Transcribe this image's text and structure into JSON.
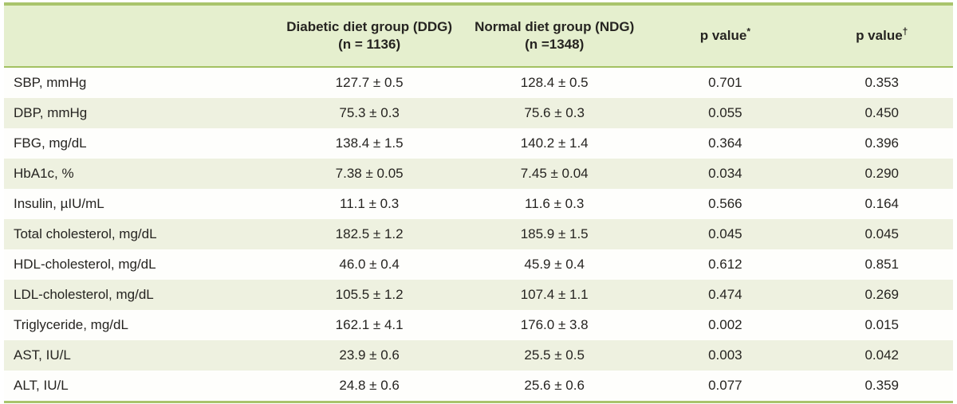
{
  "table": {
    "header": {
      "label_col": "",
      "ddg": {
        "line1": "Diabetic diet group (DDG)",
        "line2": "(n = 1136)"
      },
      "ndg": {
        "line1": "Normal diet group (NDG)",
        "line2": "(n =1348)"
      },
      "p1": {
        "label": "p value",
        "sup": "*"
      },
      "p2": {
        "label": "p value",
        "sup": "†"
      }
    },
    "rows": [
      {
        "label": "SBP, mmHg",
        "ddg": "127.7 ± 0.5",
        "ndg": "128.4 ± 0.5",
        "p1": "0.701",
        "p2": "0.353"
      },
      {
        "label": "DBP, mmHg",
        "ddg": "75.3 ± 0.3",
        "ndg": "75.6 ± 0.3",
        "p1": "0.055",
        "p2": "0.450"
      },
      {
        "label": "FBG, mg/dL",
        "ddg": "138.4 ± 1.5",
        "ndg": "140.2 ± 1.4",
        "p1": "0.364",
        "p2": "0.396"
      },
      {
        "label": "HbA1c, %",
        "ddg": "7.38 ± 0.05",
        "ndg": "7.45 ± 0.04",
        "p1": "0.034",
        "p2": "0.290"
      },
      {
        "label": "Insulin, µIU/mL",
        "ddg": "11.1 ± 0.3",
        "ndg": "11.6 ± 0.3",
        "p1": "0.566",
        "p2": "0.164"
      },
      {
        "label": "Total cholesterol, mg/dL",
        "ddg": "182.5 ± 1.2",
        "ndg": "185.9 ± 1.5",
        "p1": "0.045",
        "p2": "0.045"
      },
      {
        "label": "HDL-cholesterol, mg/dL",
        "ddg": "46.0 ± 0.4",
        "ndg": "45.9 ± 0.4",
        "p1": "0.612",
        "p2": "0.851"
      },
      {
        "label": "LDL-cholesterol, mg/dL",
        "ddg": "105.5 ± 1.2",
        "ndg": "107.4 ± 1.1",
        "p1": "0.474",
        "p2": "0.269"
      },
      {
        "label": "Triglyceride, mg/dL",
        "ddg": "162.1 ± 4.1",
        "ndg": "176.0 ± 3.8",
        "p1": "0.002",
        "p2": "0.015"
      },
      {
        "label": "AST, IU/L",
        "ddg": "23.9 ± 0.6",
        "ndg": "25.5 ± 0.5",
        "p1": "0.003",
        "p2": "0.042"
      },
      {
        "label": "ALT, IU/L",
        "ddg": "24.8 ± 0.6",
        "ndg": "25.6 ± 0.6",
        "p1": "0.077",
        "p2": "0.359"
      }
    ],
    "colors": {
      "border_green": "#a9c46c",
      "header_bg": "#e5efce",
      "stripe_bg": "#eef1e0",
      "text": "#262421"
    }
  }
}
